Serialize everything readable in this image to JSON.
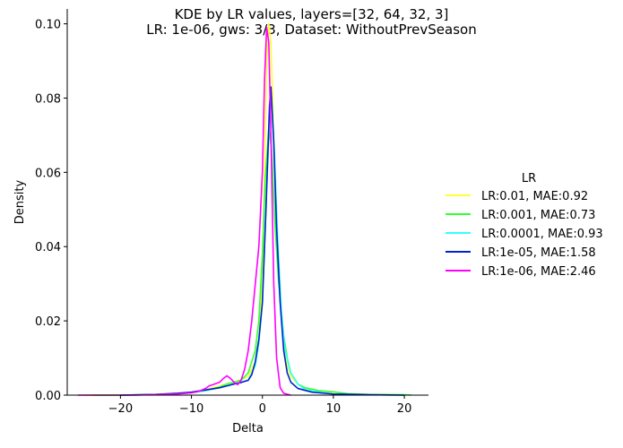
{
  "chart_data": {
    "type": "line",
    "title": "KDE by LR values, layers=[32, 64, 32, 3]",
    "subtitle": "LR: 1e-06, gws: 3/3, Dataset: WithoutPrevSeason",
    "xlabel": "Delta",
    "ylabel": "Density",
    "xlim": [
      -27.5,
      23.4
    ],
    "ylim": [
      0,
      0.104
    ],
    "xticks": [
      -20,
      -10,
      0,
      10,
      20
    ],
    "xtick_labels": [
      "−20",
      "−10",
      "0",
      "10",
      "20"
    ],
    "yticks": [
      0.0,
      0.02,
      0.04,
      0.06,
      0.08,
      0.1
    ],
    "ytick_labels": [
      "0.00",
      "0.02",
      "0.04",
      "0.06",
      "0.08",
      "0.10"
    ],
    "grid": false,
    "legend_title": "LR",
    "legend_position": "right",
    "series": [
      {
        "name": "LR:0.01, MAE:0.92",
        "color": "#ffff33",
        "points": [
          [
            -25,
            0
          ],
          [
            -20,
            0
          ],
          [
            -15,
            0.0002
          ],
          [
            -12,
            0.0005
          ],
          [
            -10,
            0.0008
          ],
          [
            -8,
            0.0015
          ],
          [
            -6,
            0.0025
          ],
          [
            -4,
            0.0035
          ],
          [
            -2,
            0.005
          ],
          [
            -1,
            0.009
          ],
          [
            -0.5,
            0.015
          ],
          [
            0,
            0.03
          ],
          [
            0.3,
            0.06
          ],
          [
            0.6,
            0.09
          ],
          [
            0.9,
            0.1
          ],
          [
            1.2,
            0.095
          ],
          [
            1.6,
            0.07
          ],
          [
            2,
            0.045
          ],
          [
            2.5,
            0.025
          ],
          [
            3,
            0.014
          ],
          [
            3.5,
            0.008
          ],
          [
            4,
            0.005
          ],
          [
            5,
            0.003
          ],
          [
            6,
            0.0015
          ],
          [
            8,
            0.0008
          ],
          [
            10,
            0.0004
          ],
          [
            15,
            0.0001
          ],
          [
            20,
            0
          ]
        ]
      },
      {
        "name": "LR:0.001, MAE:0.73",
        "color": "#33ff33",
        "points": [
          [
            -24,
            0
          ],
          [
            -20,
            0
          ],
          [
            -15,
            0.0002
          ],
          [
            -12,
            0.0004
          ],
          [
            -10,
            0.0007
          ],
          [
            -8,
            0.0012
          ],
          [
            -6,
            0.0022
          ],
          [
            -5,
            0.003
          ],
          [
            -4,
            0.0035
          ],
          [
            -3,
            0.004
          ],
          [
            -2,
            0.006
          ],
          [
            -1,
            0.012
          ],
          [
            -0.5,
            0.02
          ],
          [
            0,
            0.038
          ],
          [
            0.4,
            0.058
          ],
          [
            0.9,
            0.072
          ],
          [
            1.3,
            0.066
          ],
          [
            1.8,
            0.045
          ],
          [
            2.3,
            0.03
          ],
          [
            3,
            0.016
          ],
          [
            3.5,
            0.01
          ],
          [
            4,
            0.006
          ],
          [
            5,
            0.003
          ],
          [
            6,
            0.002
          ],
          [
            8,
            0.0012
          ],
          [
            10,
            0.0009
          ],
          [
            12,
            0.0004
          ],
          [
            15,
            0.0002
          ],
          [
            20,
            0.0001
          ],
          [
            21,
            0
          ]
        ]
      },
      {
        "name": "LR:0.0001, MAE:0.93",
        "color": "#33ffff",
        "points": [
          [
            -20,
            0
          ],
          [
            -15,
            0.0001
          ],
          [
            -12,
            0.0003
          ],
          [
            -10,
            0.0006
          ],
          [
            -8,
            0.0012
          ],
          [
            -6,
            0.002
          ],
          [
            -4,
            0.003
          ],
          [
            -2,
            0.004
          ],
          [
            -1,
            0.008
          ],
          [
            -0.5,
            0.014
          ],
          [
            0,
            0.025
          ],
          [
            0.5,
            0.05
          ],
          [
            1,
            0.075
          ],
          [
            1.3,
            0.08
          ],
          [
            1.7,
            0.065
          ],
          [
            2.2,
            0.04
          ],
          [
            2.7,
            0.022
          ],
          [
            3.2,
            0.012
          ],
          [
            4,
            0.006
          ],
          [
            5,
            0.003
          ],
          [
            6,
            0.0015
          ],
          [
            8,
            0.0008
          ],
          [
            10,
            0.0003
          ],
          [
            15,
            0.0001
          ],
          [
            20,
            0
          ]
        ]
      },
      {
        "name": "LR:1e-05, MAE:1.58",
        "color": "#0022cc",
        "points": [
          [
            -20,
            0
          ],
          [
            -15,
            0.0002
          ],
          [
            -12,
            0.0005
          ],
          [
            -10,
            0.0008
          ],
          [
            -8,
            0.0014
          ],
          [
            -6,
            0.002
          ],
          [
            -5,
            0.0025
          ],
          [
            -4,
            0.003
          ],
          [
            -3,
            0.0034
          ],
          [
            -2,
            0.004
          ],
          [
            -1.5,
            0.0055
          ],
          [
            -1,
            0.009
          ],
          [
            -0.5,
            0.015
          ],
          [
            0,
            0.025
          ],
          [
            0.5,
            0.05
          ],
          [
            1,
            0.078
          ],
          [
            1.2,
            0.083
          ],
          [
            1.6,
            0.068
          ],
          [
            2,
            0.045
          ],
          [
            2.5,
            0.025
          ],
          [
            3,
            0.012
          ],
          [
            3.5,
            0.006
          ],
          [
            4,
            0.0035
          ],
          [
            5,
            0.0018
          ],
          [
            7,
            0.0008
          ],
          [
            10,
            0.0003
          ],
          [
            15,
            0.0001
          ],
          [
            20,
            0
          ]
        ]
      },
      {
        "name": "LR:1e-06, MAE:2.46",
        "color": "#ff00ff",
        "points": [
          [
            -26,
            0
          ],
          [
            -22,
            0
          ],
          [
            -18,
            0
          ],
          [
            -14,
            0.0002
          ],
          [
            -12,
            0.0003
          ],
          [
            -10,
            0.0006
          ],
          [
            -9,
            0.001
          ],
          [
            -8,
            0.0018
          ],
          [
            -7.5,
            0.0025
          ],
          [
            -7,
            0.0028
          ],
          [
            -6,
            0.0035
          ],
          [
            -5.5,
            0.0045
          ],
          [
            -5,
            0.0052
          ],
          [
            -4.5,
            0.0045
          ],
          [
            -4,
            0.0035
          ],
          [
            -3.5,
            0.0028
          ],
          [
            -3,
            0.004
          ],
          [
            -2.5,
            0.007
          ],
          [
            -2,
            0.012
          ],
          [
            -1.5,
            0.02
          ],
          [
            -1,
            0.03
          ],
          [
            -0.5,
            0.04
          ],
          [
            0,
            0.06
          ],
          [
            0.3,
            0.085
          ],
          [
            0.6,
            0.099
          ],
          [
            0.9,
            0.095
          ],
          [
            1.2,
            0.07
          ],
          [
            1.6,
            0.03
          ],
          [
            2,
            0.01
          ],
          [
            2.5,
            0.002
          ],
          [
            3,
            0.0005
          ],
          [
            4,
            0
          ]
        ]
      }
    ]
  }
}
